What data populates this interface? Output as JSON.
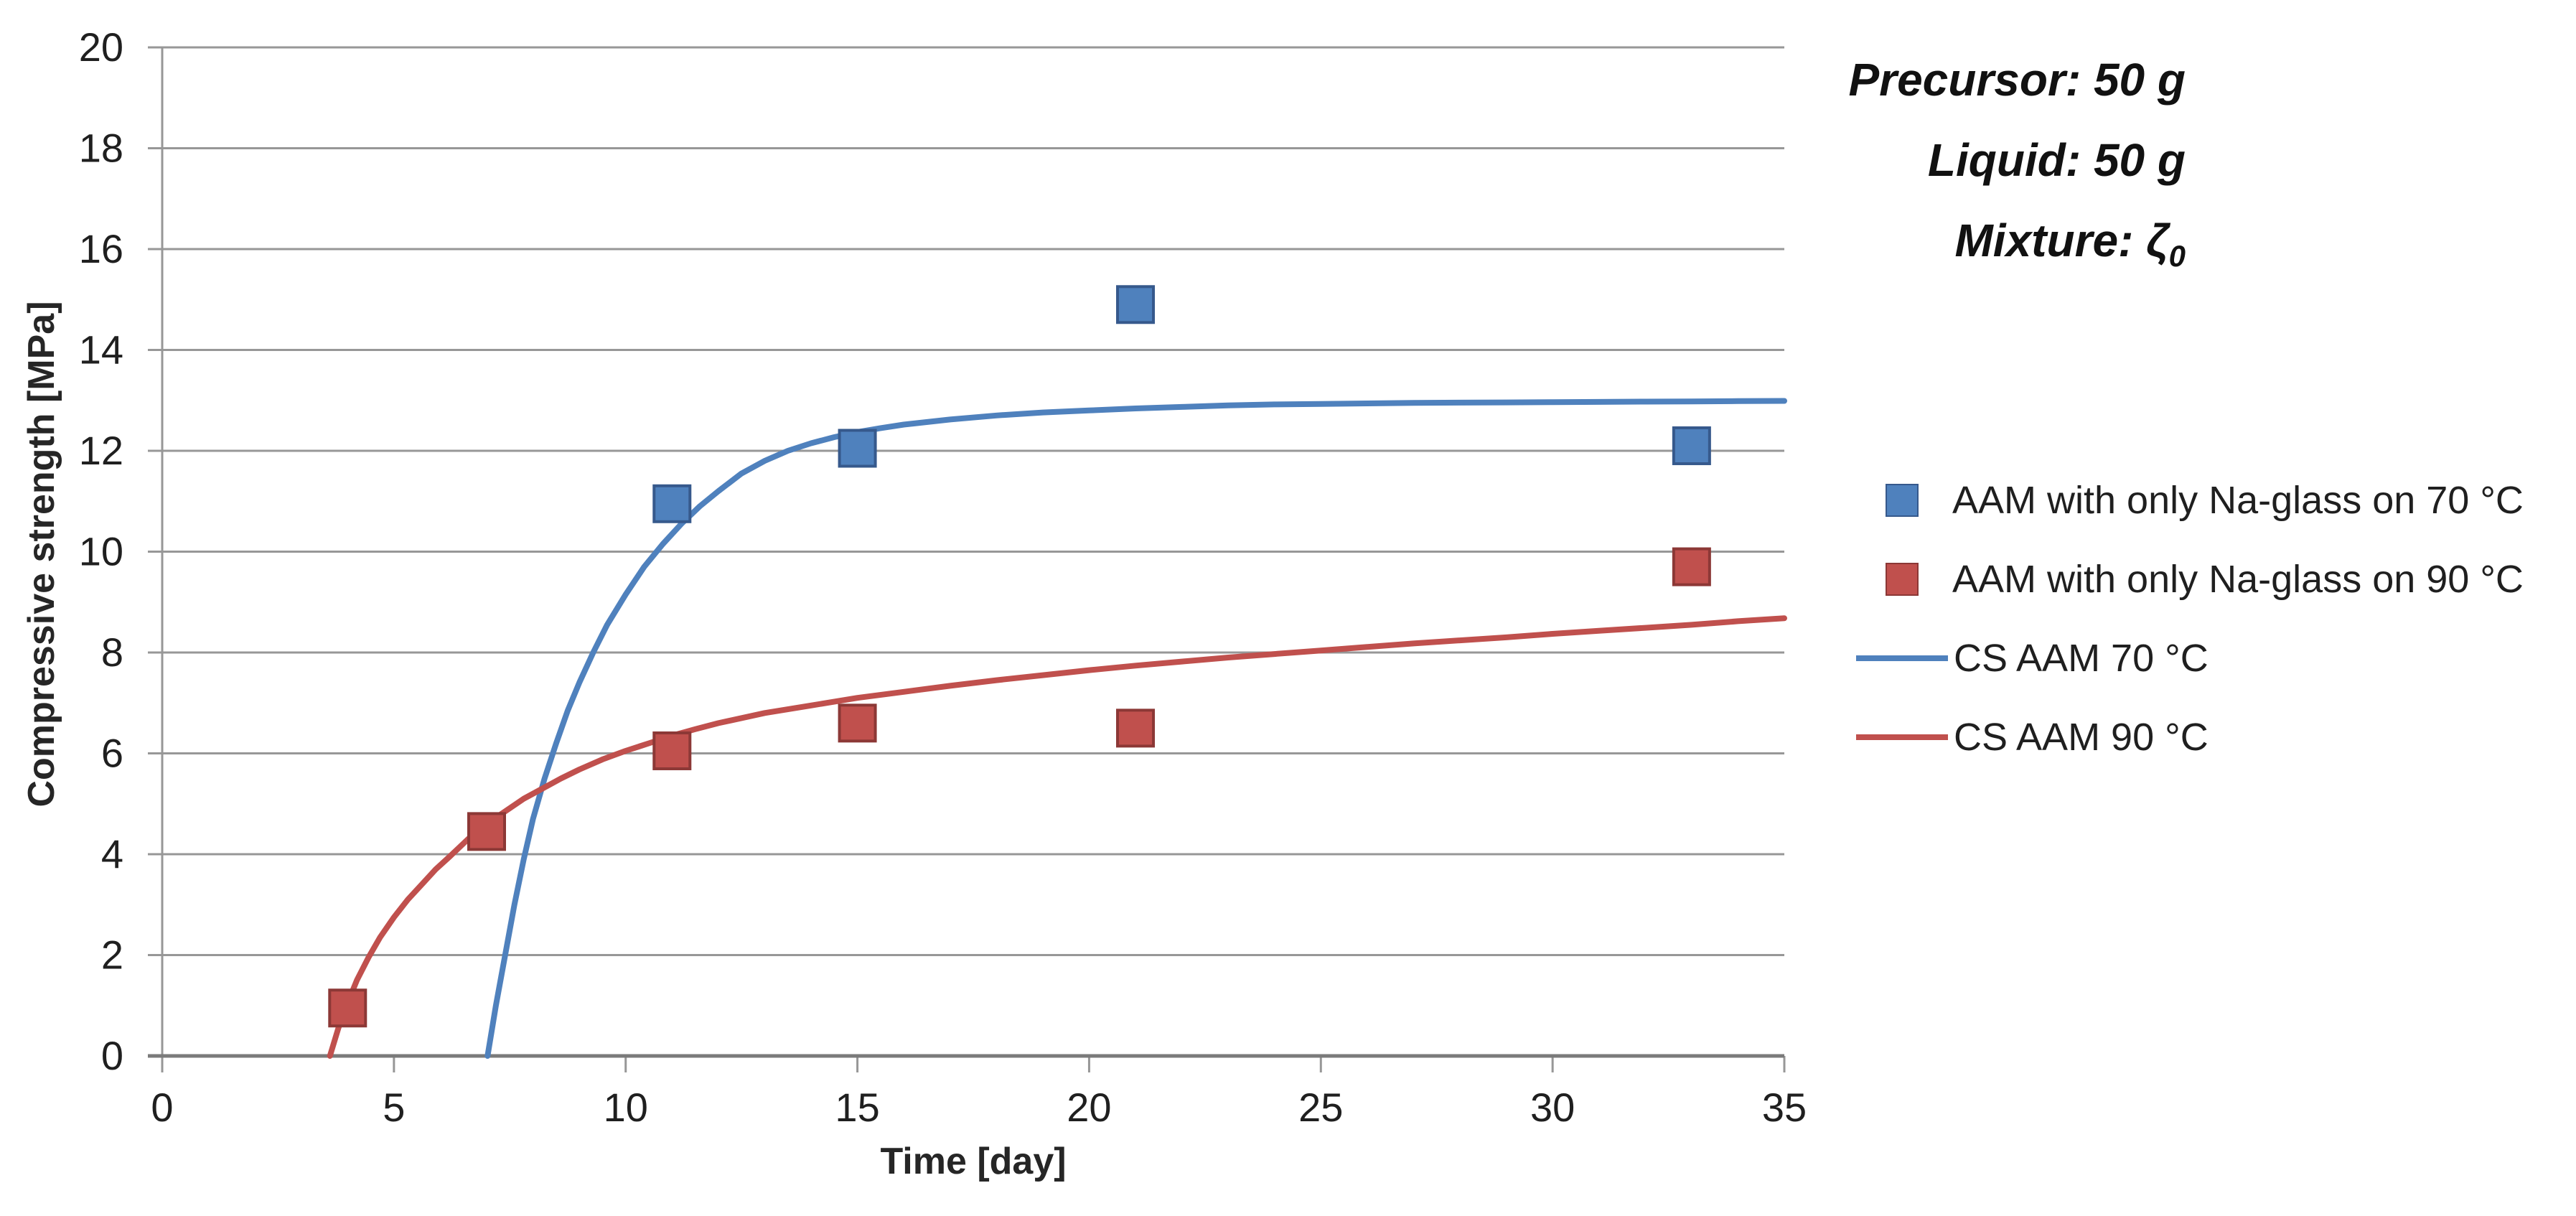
{
  "annotation": {
    "lines": [
      {
        "text": "Precursor: 50 g",
        "sub": ""
      },
      {
        "text": "Liquid: 50 g",
        "sub": ""
      },
      {
        "text": "Mixture: ζ",
        "sub": "0"
      }
    ]
  },
  "chart_data": {
    "type": "scatter",
    "title": "",
    "xlabel": "Time [day]",
    "ylabel": "Compressive strength [MPa]",
    "xlim": [
      0,
      35
    ],
    "ylim": [
      0,
      20
    ],
    "xticks": [
      0,
      5,
      10,
      15,
      20,
      25,
      30,
      35
    ],
    "yticks": [
      0,
      2,
      4,
      6,
      8,
      10,
      12,
      14,
      16,
      18,
      20
    ],
    "grid": true,
    "legend_position": "right",
    "grid_color": "#979797",
    "axis_color": "#7a7a7a",
    "series": [
      {
        "name": "AAM with only Na-glass on 70 °C",
        "kind": "scatter",
        "color": "#4F81BD",
        "border_color": "#36598C",
        "points": [
          [
            11,
            10.95
          ],
          [
            15,
            12.05
          ],
          [
            21,
            14.9
          ],
          [
            33,
            12.1
          ]
        ]
      },
      {
        "name": "AAM with only Na-glass on 90 °C",
        "kind": "scatter",
        "color": "#C0504D",
        "border_color": "#8C3836",
        "points": [
          [
            4,
            0.95
          ],
          [
            7,
            4.45
          ],
          [
            11,
            6.05
          ],
          [
            15,
            6.6
          ],
          [
            21,
            6.5
          ],
          [
            33,
            9.7
          ]
        ]
      },
      {
        "name": "CS AAM 70 °C",
        "kind": "line",
        "color": "#4F81BD",
        "points": [
          [
            7.02,
            0
          ],
          [
            7.2,
            1.0
          ],
          [
            7.4,
            2.0
          ],
          [
            7.6,
            3.0
          ],
          [
            7.8,
            3.9
          ],
          [
            8.0,
            4.7
          ],
          [
            8.25,
            5.5
          ],
          [
            8.5,
            6.2
          ],
          [
            8.75,
            6.85
          ],
          [
            9.0,
            7.4
          ],
          [
            9.3,
            8.0
          ],
          [
            9.6,
            8.55
          ],
          [
            10.0,
            9.15
          ],
          [
            10.4,
            9.7
          ],
          [
            10.8,
            10.15
          ],
          [
            11.2,
            10.55
          ],
          [
            11.6,
            10.9
          ],
          [
            12.0,
            11.2
          ],
          [
            12.5,
            11.55
          ],
          [
            13.0,
            11.8
          ],
          [
            13.5,
            12.0
          ],
          [
            14.0,
            12.15
          ],
          [
            14.5,
            12.27
          ],
          [
            15.0,
            12.37
          ],
          [
            15.5,
            12.45
          ],
          [
            16,
            12.52
          ],
          [
            17,
            12.62
          ],
          [
            18,
            12.7
          ],
          [
            19,
            12.76
          ],
          [
            20,
            12.8
          ],
          [
            21,
            12.84
          ],
          [
            22,
            12.87
          ],
          [
            23,
            12.9
          ],
          [
            24,
            12.92
          ],
          [
            25,
            12.93
          ],
          [
            26,
            12.94
          ],
          [
            27,
            12.95
          ],
          [
            28,
            12.955
          ],
          [
            29,
            12.96
          ],
          [
            30,
            12.965
          ],
          [
            31,
            12.97
          ],
          [
            32,
            12.975
          ],
          [
            33,
            12.98
          ],
          [
            34,
            12.985
          ],
          [
            35,
            12.99
          ]
        ]
      },
      {
        "name": "CS AAM 90 °C",
        "kind": "line",
        "color": "#C0504D",
        "points": [
          [
            3.62,
            0
          ],
          [
            3.8,
            0.55
          ],
          [
            4.0,
            1.05
          ],
          [
            4.2,
            1.5
          ],
          [
            4.45,
            1.95
          ],
          [
            4.7,
            2.35
          ],
          [
            5.0,
            2.75
          ],
          [
            5.3,
            3.1
          ],
          [
            5.6,
            3.4
          ],
          [
            5.9,
            3.7
          ],
          [
            6.2,
            3.95
          ],
          [
            6.6,
            4.3
          ],
          [
            7.0,
            4.6
          ],
          [
            7.4,
            4.85
          ],
          [
            7.8,
            5.1
          ],
          [
            8.2,
            5.3
          ],
          [
            8.6,
            5.5
          ],
          [
            9.0,
            5.68
          ],
          [
            9.5,
            5.88
          ],
          [
            10,
            6.05
          ],
          [
            10.5,
            6.2
          ],
          [
            11,
            6.35
          ],
          [
            11.5,
            6.48
          ],
          [
            12,
            6.6
          ],
          [
            13,
            6.8
          ],
          [
            14,
            6.95
          ],
          [
            15,
            7.1
          ],
          [
            16,
            7.22
          ],
          [
            17,
            7.34
          ],
          [
            18,
            7.45
          ],
          [
            19,
            7.55
          ],
          [
            20,
            7.65
          ],
          [
            21,
            7.74
          ],
          [
            22,
            7.82
          ],
          [
            23,
            7.9
          ],
          [
            24,
            7.97
          ],
          [
            25,
            8.04
          ],
          [
            26,
            8.11
          ],
          [
            27,
            8.18
          ],
          [
            28,
            8.24
          ],
          [
            29,
            8.3
          ],
          [
            30,
            8.37
          ],
          [
            31,
            8.43
          ],
          [
            32,
            8.49
          ],
          [
            33,
            8.55
          ],
          [
            34,
            8.62
          ],
          [
            35,
            8.68
          ]
        ]
      }
    ]
  }
}
